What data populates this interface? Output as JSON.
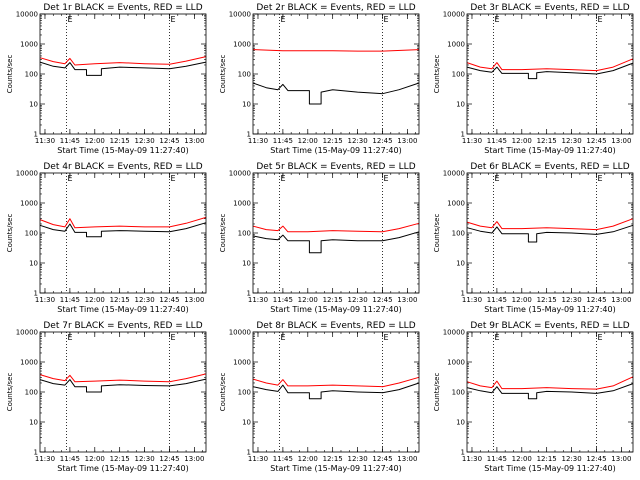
{
  "figure": {
    "xlabel": "Start Time (15-May-09 11:27:40)",
    "ylabel": "Counts/sec",
    "xtick_labels": [
      "11:30",
      "11:45",
      "12:00",
      "12:15",
      "12:30",
      "12:45",
      "13:00"
    ],
    "ytick_labels": [
      "1",
      "10",
      "100",
      "1000",
      "10000"
    ],
    "event_marker_label": "E",
    "colors": {
      "events": "#000000",
      "lld": "#ff0000",
      "markers": "#000000"
    }
  },
  "chart_data": [
    {
      "type": "line",
      "title": "Det 1r BLACK = Events, RED = LLD",
      "xlabel": "Start Time (15-May-09 11:27:40)",
      "ylabel": "Counts/sec",
      "xlim": [
        "11:27",
        "13:07"
      ],
      "ylim": [
        1,
        10000
      ],
      "yscale": "log",
      "grid": false,
      "event_markers": [
        "11:43",
        "12:45"
      ],
      "series": [
        {
          "name": "Events",
          "color": "#000000",
          "x": [
            "11:27",
            "11:35",
            "11:42",
            "11:45",
            "11:48",
            "11:55",
            "11:55",
            "12:04",
            "12:04",
            "12:15",
            "12:30",
            "12:45",
            "12:55",
            "13:07"
          ],
          "values": [
            250,
            180,
            160,
            240,
            140,
            140,
            90,
            90,
            150,
            170,
            160,
            150,
            180,
            250
          ]
        },
        {
          "name": "LLD",
          "color": "#ff0000",
          "x": [
            "11:27",
            "11:35",
            "11:42",
            "11:45",
            "11:48",
            "12:00",
            "12:15",
            "12:30",
            "12:45",
            "12:55",
            "13:07"
          ],
          "values": [
            350,
            260,
            220,
            330,
            200,
            220,
            240,
            220,
            210,
            270,
            380
          ]
        }
      ]
    },
    {
      "type": "line",
      "title": "Det 2r BLACK = Events, RED = LLD",
      "xlabel": "Start Time (15-May-09 11:27:40)",
      "ylabel": "Counts/sec",
      "xlim": [
        "11:27",
        "13:07"
      ],
      "ylim": [
        1,
        10000
      ],
      "yscale": "log",
      "grid": false,
      "event_markers": [
        "11:43",
        "12:45"
      ],
      "series": [
        {
          "name": "Events",
          "color": "#000000",
          "x": [
            "11:27",
            "11:35",
            "11:42",
            "11:45",
            "11:48",
            "12:01",
            "12:01",
            "12:08",
            "12:08",
            "12:15",
            "12:30",
            "12:45",
            "12:55",
            "13:07"
          ],
          "values": [
            50,
            35,
            30,
            45,
            28,
            28,
            10,
            10,
            25,
            30,
            25,
            22,
            30,
            50
          ]
        },
        {
          "name": "LLD",
          "color": "#ff0000",
          "x": [
            "11:27",
            "11:45",
            "12:00",
            "12:15",
            "12:30",
            "12:45",
            "13:07"
          ],
          "values": [
            650,
            600,
            600,
            600,
            580,
            580,
            650
          ]
        }
      ]
    },
    {
      "type": "line",
      "title": "Det 3r BLACK = Events, RED = LLD",
      "xlabel": "Start Time (15-May-09 11:27:40)",
      "ylabel": "Counts/sec",
      "xlim": [
        "11:27",
        "13:07"
      ],
      "ylim": [
        1,
        10000
      ],
      "yscale": "log",
      "grid": false,
      "event_markers": [
        "11:43",
        "12:45"
      ],
      "series": [
        {
          "name": "Events",
          "color": "#000000",
          "x": [
            "11:27",
            "11:35",
            "11:42",
            "11:45",
            "11:48",
            "12:04",
            "12:04",
            "12:09",
            "12:09",
            "12:15",
            "12:30",
            "12:45",
            "12:55",
            "13:07"
          ],
          "values": [
            170,
            130,
            115,
            170,
            105,
            105,
            70,
            70,
            110,
            120,
            110,
            100,
            130,
            230
          ]
        },
        {
          "name": "LLD",
          "color": "#ff0000",
          "x": [
            "11:27",
            "11:35",
            "11:42",
            "11:45",
            "11:48",
            "12:00",
            "12:15",
            "12:30",
            "12:45",
            "12:55",
            "13:07"
          ],
          "values": [
            240,
            170,
            150,
            240,
            140,
            140,
            150,
            140,
            130,
            170,
            320
          ]
        }
      ]
    },
    {
      "type": "line",
      "title": "Det 4r BLACK = Events, RED = LLD",
      "xlabel": "Start Time (15-May-09 11:27:40)",
      "ylabel": "Counts/sec",
      "xlim": [
        "11:27",
        "13:07"
      ],
      "ylim": [
        1,
        10000
      ],
      "yscale": "log",
      "grid": false,
      "event_markers": [
        "11:43",
        "12:45"
      ],
      "series": [
        {
          "name": "Events",
          "color": "#000000",
          "x": [
            "11:27",
            "11:35",
            "11:42",
            "11:45",
            "11:48",
            "11:55",
            "11:55",
            "12:04",
            "12:04",
            "12:15",
            "12:30",
            "12:45",
            "12:55",
            "13:07"
          ],
          "values": [
            180,
            130,
            115,
            200,
            105,
            105,
            75,
            75,
            115,
            120,
            115,
            110,
            140,
            220
          ]
        },
        {
          "name": "LLD",
          "color": "#ff0000",
          "x": [
            "11:27",
            "11:35",
            "11:42",
            "11:45",
            "11:48",
            "12:00",
            "12:15",
            "12:30",
            "12:45",
            "12:55",
            "13:07"
          ],
          "values": [
            280,
            190,
            160,
            300,
            150,
            160,
            170,
            160,
            160,
            210,
            330
          ]
        }
      ]
    },
    {
      "type": "line",
      "title": "Det 5r BLACK = Events, RED = LLD",
      "xlabel": "Start Time (15-May-09 11:27:40)",
      "ylabel": "Counts/sec",
      "xlim": [
        "11:27",
        "13:07"
      ],
      "ylim": [
        1,
        10000
      ],
      "yscale": "log",
      "grid": false,
      "event_markers": [
        "11:43",
        "12:45"
      ],
      "series": [
        {
          "name": "Events",
          "color": "#000000",
          "x": [
            "11:27",
            "11:35",
            "11:42",
            "11:45",
            "11:48",
            "12:01",
            "12:01",
            "12:08",
            "12:08",
            "12:15",
            "12:30",
            "12:45",
            "12:55",
            "13:07"
          ],
          "values": [
            80,
            65,
            60,
            85,
            55,
            55,
            22,
            22,
            55,
            60,
            55,
            55,
            70,
            110
          ]
        },
        {
          "name": "LLD",
          "color": "#ff0000",
          "x": [
            "11:27",
            "11:35",
            "11:42",
            "11:45",
            "11:48",
            "12:00",
            "12:15",
            "12:30",
            "12:45",
            "12:55",
            "13:07"
          ],
          "values": [
            170,
            130,
            120,
            170,
            110,
            110,
            120,
            115,
            110,
            140,
            210
          ]
        }
      ]
    },
    {
      "type": "line",
      "title": "Det 6r BLACK = Events, RED = LLD",
      "xlabel": "Start Time (15-May-09 11:27:40)",
      "ylabel": "Counts/sec",
      "xlim": [
        "11:27",
        "13:07"
      ],
      "ylim": [
        1,
        10000
      ],
      "yscale": "log",
      "grid": false,
      "event_markers": [
        "11:43",
        "12:45"
      ],
      "series": [
        {
          "name": "Events",
          "color": "#000000",
          "x": [
            "11:27",
            "11:35",
            "11:42",
            "11:45",
            "11:48",
            "12:04",
            "12:04",
            "12:09",
            "12:09",
            "12:15",
            "12:30",
            "12:45",
            "12:55",
            "13:07"
          ],
          "values": [
            150,
            115,
            100,
            160,
            95,
            95,
            50,
            50,
            95,
            105,
            100,
            90,
            110,
            180
          ]
        },
        {
          "name": "LLD",
          "color": "#ff0000",
          "x": [
            "11:27",
            "11:35",
            "11:42",
            "11:45",
            "11:48",
            "12:00",
            "12:15",
            "12:30",
            "12:45",
            "12:55",
            "13:07"
          ],
          "values": [
            230,
            170,
            150,
            240,
            140,
            140,
            150,
            140,
            130,
            170,
            300
          ]
        }
      ]
    },
    {
      "type": "line",
      "title": "Det 7r BLACK = Events, RED = LLD",
      "xlabel": "Start Time (15-May-09 11:27:40)",
      "ylabel": "Counts/sec",
      "xlim": [
        "11:27",
        "13:07"
      ],
      "ylim": [
        1,
        10000
      ],
      "yscale": "log",
      "grid": false,
      "event_markers": [
        "11:43",
        "12:45"
      ],
      "series": [
        {
          "name": "Events",
          "color": "#000000",
          "x": [
            "11:27",
            "11:35",
            "11:42",
            "11:45",
            "11:48",
            "11:55",
            "11:55",
            "12:04",
            "12:04",
            "12:15",
            "12:30",
            "12:45",
            "12:55",
            "13:07"
          ],
          "values": [
            260,
            190,
            170,
            260,
            150,
            150,
            100,
            100,
            160,
            175,
            165,
            160,
            190,
            270
          ]
        },
        {
          "name": "LLD",
          "color": "#ff0000",
          "x": [
            "11:27",
            "11:35",
            "11:42",
            "11:45",
            "11:48",
            "12:00",
            "12:15",
            "12:30",
            "12:45",
            "12:55",
            "13:07"
          ],
          "values": [
            380,
            280,
            240,
            360,
            220,
            230,
            250,
            230,
            220,
            280,
            400
          ]
        }
      ]
    },
    {
      "type": "line",
      "title": "Det 8r BLACK = Events, RED = LLD",
      "xlabel": "Start Time (15-May-09 11:27:40)",
      "ylabel": "Counts/sec",
      "xlim": [
        "11:27",
        "13:07"
      ],
      "ylim": [
        1,
        10000
      ],
      "yscale": "log",
      "grid": false,
      "event_markers": [
        "11:43",
        "12:45"
      ],
      "series": [
        {
          "name": "Events",
          "color": "#000000",
          "x": [
            "11:27",
            "11:35",
            "11:42",
            "11:45",
            "11:48",
            "12:01",
            "12:01",
            "12:08",
            "12:08",
            "12:15",
            "12:30",
            "12:45",
            "12:55",
            "13:07"
          ],
          "values": [
            150,
            120,
            105,
            170,
            95,
            95,
            60,
            60,
            100,
            110,
            100,
            95,
            120,
            200
          ]
        },
        {
          "name": "LLD",
          "color": "#ff0000",
          "x": [
            "11:27",
            "11:35",
            "11:42",
            "11:45",
            "11:48",
            "12:00",
            "12:15",
            "12:30",
            "12:45",
            "12:55",
            "13:07"
          ],
          "values": [
            270,
            200,
            170,
            260,
            160,
            160,
            170,
            160,
            150,
            200,
            310
          ]
        }
      ]
    },
    {
      "type": "line",
      "title": "Det 9r BLACK = Events, RED = LLD",
      "xlabel": "Start Time (15-May-09 11:27:40)",
      "ylabel": "Counts/sec",
      "xlim": [
        "11:27",
        "13:07"
      ],
      "ylim": [
        1,
        10000
      ],
      "yscale": "log",
      "grid": false,
      "event_markers": [
        "11:43",
        "12:45"
      ],
      "series": [
        {
          "name": "Events",
          "color": "#000000",
          "x": [
            "11:27",
            "11:35",
            "11:42",
            "11:45",
            "11:48",
            "12:04",
            "12:04",
            "12:09",
            "12:09",
            "12:15",
            "12:30",
            "12:45",
            "12:55",
            "13:07"
          ],
          "values": [
            140,
            110,
            95,
            150,
            90,
            90,
            60,
            60,
            95,
            105,
            100,
            90,
            110,
            190
          ]
        },
        {
          "name": "LLD",
          "color": "#ff0000",
          "x": [
            "11:27",
            "11:35",
            "11:42",
            "11:45",
            "11:48",
            "12:00",
            "12:15",
            "12:30",
            "12:45",
            "12:55",
            "13:07"
          ],
          "values": [
            220,
            160,
            140,
            230,
            130,
            130,
            140,
            130,
            125,
            160,
            320
          ]
        }
      ]
    }
  ]
}
